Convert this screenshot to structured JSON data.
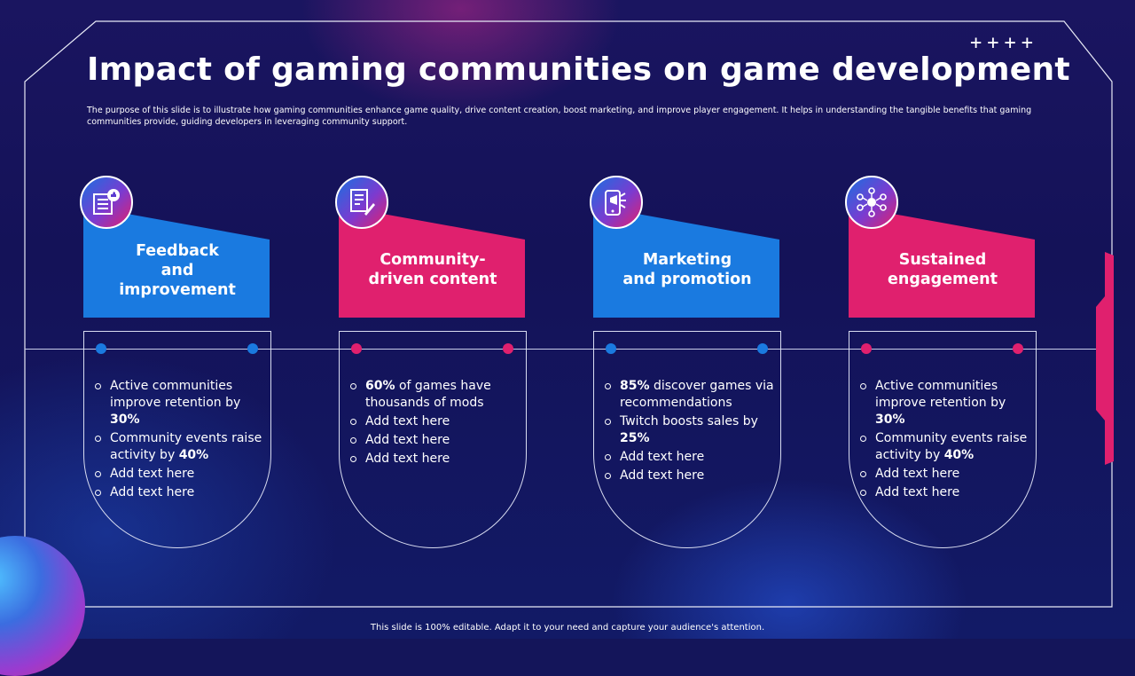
{
  "title": "Impact of gaming communities on game development",
  "subtitle": "The purpose of this slide is to illustrate how gaming communities enhance game quality, drive content creation, boost marketing, and improve player engagement. It helps in understanding the tangible benefits that gaming communities provide, guiding developers in leveraging community support.",
  "decor_plus": "++++",
  "footer": "This slide is 100% editable. Adapt it to your need and capture your audience's attention.",
  "colors": {
    "blue": "#1a7ae0",
    "pink": "#e0206e",
    "background": "#14155a"
  },
  "cards": [
    {
      "label": "Feedback and improvement",
      "label_lines": [
        "Feedback",
        "and",
        "improvement"
      ],
      "color": "blue",
      "icon": "feedback-form-icon",
      "bullets": [
        {
          "pre": "",
          "bold_lead": "",
          "text": "Active communities improve retention by ",
          "bold": "30%"
        },
        {
          "pre": "",
          "bold_lead": "",
          "text": "Community events raise activity by ",
          "bold": "40%"
        },
        {
          "pre": "",
          "bold_lead": "",
          "text": "Add text here",
          "bold": ""
        },
        {
          "pre": "",
          "bold_lead": "",
          "text": "Add text here",
          "bold": ""
        }
      ]
    },
    {
      "label": "Community-driven content",
      "label_lines": [
        "Community-",
        "driven content"
      ],
      "color": "pink",
      "icon": "document-edit-icon",
      "bullets": [
        {
          "bold_lead": "60%",
          "text": " of games have thousands of mods",
          "bold": ""
        },
        {
          "bold_lead": "",
          "text": "Add text here",
          "bold": ""
        },
        {
          "bold_lead": "",
          "text": "Add text here",
          "bold": ""
        },
        {
          "bold_lead": "",
          "text": "Add text here",
          "bold": ""
        }
      ]
    },
    {
      "label": "Marketing and promotion",
      "label_lines": [
        "Marketing",
        "and promotion"
      ],
      "color": "blue",
      "icon": "mobile-megaphone-icon",
      "bullets": [
        {
          "bold_lead": "85%",
          "text": " discover games via recommendations",
          "bold": ""
        },
        {
          "bold_lead": "",
          "text": "Twitch boosts sales by ",
          "bold": "25%"
        },
        {
          "bold_lead": "",
          "text": "Add text here",
          "bold": ""
        },
        {
          "bold_lead": "",
          "text": "Add text here",
          "bold": ""
        }
      ]
    },
    {
      "label": "Sustained engagement",
      "label_lines": [
        "Sustained",
        "engagement"
      ],
      "color": "pink",
      "icon": "network-users-icon",
      "bullets": [
        {
          "bold_lead": "",
          "text": "Active communities improve retention by ",
          "bold": "30%"
        },
        {
          "bold_lead": "",
          "text": "Community events raise activity by ",
          "bold": "40%"
        },
        {
          "bold_lead": "",
          "text": "Add text here",
          "bold": ""
        },
        {
          "bold_lead": "",
          "text": "Add text here",
          "bold": ""
        }
      ]
    }
  ]
}
